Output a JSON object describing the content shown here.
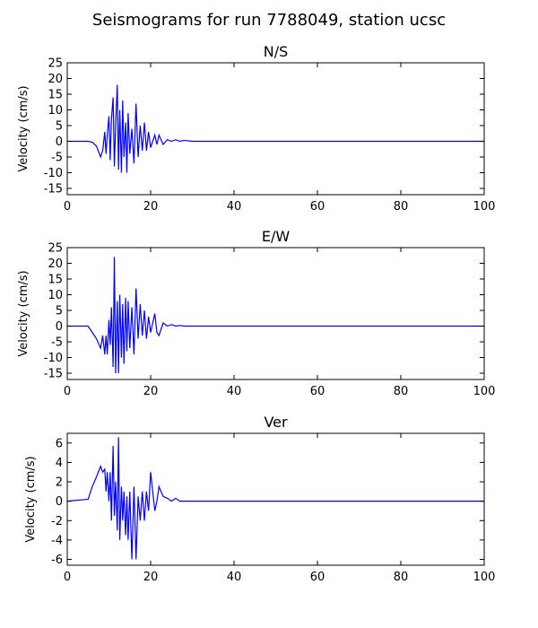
{
  "title": "Seismograms for run 7788049, station ucsc",
  "chart_data": [
    {
      "type": "line",
      "title": "N/S",
      "ylabel": "Velocity (cm/s)",
      "color": "#0000ff",
      "xlim": [
        0,
        100
      ],
      "xticks": [
        0,
        20,
        40,
        60,
        80,
        100
      ],
      "ylim": [
        -17,
        25
      ],
      "yticks": [
        -15,
        -10,
        -5,
        0,
        5,
        10,
        15,
        20,
        25
      ],
      "x": [
        0,
        5,
        6,
        7,
        8,
        8.5,
        9,
        9.3,
        9.6,
        10,
        10.3,
        10.6,
        11,
        11.3,
        11.6,
        12,
        12.3,
        12.6,
        13,
        13.3,
        13.6,
        14,
        14.3,
        14.6,
        15,
        15.5,
        16,
        16.5,
        17,
        17.5,
        18,
        18.5,
        19,
        19.5,
        20,
        21,
        21.5,
        22,
        23,
        24,
        25,
        26,
        27,
        28,
        30,
        100
      ],
      "values": [
        0,
        0,
        -0.3,
        -1.5,
        -5,
        -3,
        3,
        -4,
        2,
        8,
        -6,
        7,
        14,
        -8,
        5,
        18,
        -9,
        10,
        -10,
        13,
        -5,
        6,
        -10,
        9,
        -4,
        4,
        -7,
        12,
        -5,
        5,
        -3,
        6,
        -3,
        3,
        -2,
        2,
        -1,
        2,
        -1,
        0.5,
        0,
        0.5,
        0,
        0.3,
        0,
        0
      ]
    },
    {
      "type": "line",
      "title": "E/W",
      "ylabel": "Velocity (cm/s)",
      "color": "#0000ff",
      "xlim": [
        0,
        100
      ],
      "xticks": [
        0,
        20,
        40,
        60,
        80,
        100
      ],
      "ylim": [
        -17,
        25
      ],
      "yticks": [
        -15,
        -10,
        -5,
        0,
        5,
        10,
        15,
        20,
        25
      ],
      "x": [
        0,
        5,
        6,
        7,
        8,
        8.5,
        9,
        9.3,
        9.6,
        10,
        10.3,
        10.6,
        11,
        11.3,
        11.6,
        12,
        12.3,
        12.6,
        13,
        13.3,
        13.6,
        14,
        14.3,
        14.6,
        15,
        15.5,
        16,
        16.5,
        17,
        17.5,
        18,
        18.5,
        19,
        19.5,
        20,
        21,
        21.5,
        22,
        23,
        24,
        25,
        26,
        27,
        28,
        30,
        100
      ],
      "values": [
        0,
        0,
        -2,
        -4,
        -7,
        -3,
        -9,
        -3,
        -9,
        2,
        -6,
        6,
        -13,
        22,
        -15,
        8,
        -15,
        10,
        -10,
        7,
        -12,
        9,
        -8,
        8,
        -7,
        6,
        -9,
        12,
        -4,
        7,
        -3,
        5,
        -4,
        3,
        -2,
        4,
        -2,
        -3,
        1,
        0,
        0.5,
        0,
        0.2,
        0,
        0,
        0
      ]
    },
    {
      "type": "line",
      "title": "Ver",
      "ylabel": "Velocity (cm/s)",
      "color": "#0000ff",
      "xlim": [
        0,
        100
      ],
      "xticks": [
        0,
        20,
        40,
        60,
        80,
        100
      ],
      "ylim": [
        -6.6,
        7
      ],
      "yticks": [
        -6,
        -4,
        -2,
        0,
        2,
        4,
        6
      ],
      "x": [
        0,
        5,
        6,
        7,
        8,
        8.5,
        9,
        9.3,
        9.6,
        10,
        10.3,
        10.6,
        11,
        11.3,
        11.6,
        12,
        12.3,
        12.6,
        13,
        13.3,
        13.6,
        14,
        14.3,
        14.6,
        15,
        15.5,
        16,
        16.5,
        17,
        17.5,
        18,
        18.5,
        19,
        19.5,
        20,
        21,
        21.5,
        22,
        23,
        24,
        25,
        26,
        27,
        28,
        30,
        100
      ],
      "values": [
        0,
        0.2,
        1.5,
        2.5,
        3.6,
        3,
        3.3,
        1,
        3,
        0,
        3,
        -2,
        5.7,
        -1.5,
        2,
        -3,
        6.6,
        -4,
        1.5,
        -2,
        1,
        -3.5,
        0.5,
        -4,
        1,
        -6,
        1.5,
        -6,
        0.5,
        -2,
        1,
        -2,
        1,
        -1,
        3,
        -1,
        0,
        1.5,
        0.5,
        0.3,
        0,
        0.3,
        0,
        0,
        0,
        0
      ]
    }
  ]
}
